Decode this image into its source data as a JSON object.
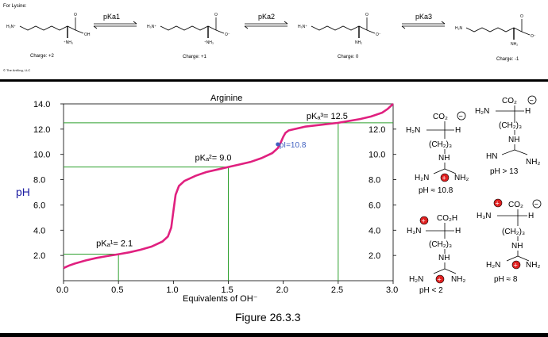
{
  "top_panel": {
    "heading": "For Lysine:",
    "copyright": "© The AnKing, LLC",
    "arrow_labels": [
      "pKa1",
      "pKa2",
      "pKa3"
    ],
    "species": [
      {
        "charge": "Charge: +2",
        "n_term": "H₃N⁺",
        "alpha_group": "⁺NH₃",
        "acid": "OH"
      },
      {
        "charge": "Charge: +1",
        "n_term": "H₃N⁺",
        "alpha_group": "⁺NH₃",
        "acid": "O⁻"
      },
      {
        "charge": "Charge: 0",
        "n_term": "H₃N⁺",
        "alpha_group": "NH₂",
        "acid": "O⁻"
      },
      {
        "charge": "Charge: -1",
        "n_term": "H₂N",
        "alpha_group": "NH₂",
        "acid": "O⁻"
      }
    ],
    "carbonyl_o": "O"
  },
  "figure": {
    "caption": "Figure 26.3.3",
    "structures": [
      {
        "pH": "pH > 13",
        "carboxyl": "CO₂",
        "carboxyl_charge": "−",
        "amine": "H₂N",
        "h": "H",
        "chain": "(CH₂)₃",
        "nh": "NH",
        "left_n": "HN",
        "right_n": "NH₂"
      },
      {
        "pH": "pH ≈ 10.8",
        "carboxyl": "CO₂",
        "carboxyl_charge": "−",
        "amine": "H₂N",
        "h": "H",
        "chain": "(CH₂)₃",
        "nh": "NH",
        "left_n": "H₂N",
        "right_n": "NH₂",
        "guan_charge": "+"
      },
      {
        "pH": "pH ≈ 8",
        "carboxyl": "CO₂",
        "carboxyl_charge": "−",
        "amine": "H₃N",
        "amine_charge": "+",
        "h": "H",
        "chain": "(CH₂)₃",
        "nh": "NH",
        "left_n": "H₂N",
        "right_n": "NH₂",
        "guan_charge": "+"
      },
      {
        "pH": "pH < 2",
        "carboxyl": "CO₂H",
        "amine": "H₃N",
        "amine_charge": "+",
        "h": "H",
        "chain": "(CH₂)₃",
        "nh": "NH",
        "left_n": "H₂N",
        "right_n": "NH₂",
        "guan_charge": "+"
      }
    ]
  },
  "chart_data": {
    "type": "line",
    "title": "Arginine",
    "xlabel": "Equivalents of OH⁻",
    "ylabel": "pH",
    "xlim": [
      0,
      3.0
    ],
    "ylim": [
      0,
      14.0
    ],
    "x_ticks": [
      "0.0",
      "0.5",
      "1.0",
      "1.5",
      "2.0",
      "2.5",
      "3.0"
    ],
    "y_ticks": [
      "2.0",
      "4.0",
      "6.0",
      "8.0",
      "10.0",
      "12.0",
      "14.0"
    ],
    "grid": false,
    "colors": {
      "curve": "#e0207f",
      "guides": "#2ea02e",
      "axis": "#000000",
      "pI": "#4060c0"
    },
    "curve": {
      "x": [
        0.0,
        0.05,
        0.1,
        0.2,
        0.3,
        0.4,
        0.5,
        0.6,
        0.7,
        0.8,
        0.9,
        0.95,
        0.98,
        1.0,
        1.02,
        1.05,
        1.1,
        1.2,
        1.3,
        1.4,
        1.5,
        1.6,
        1.7,
        1.8,
        1.9,
        1.95,
        1.98,
        2.0,
        2.02,
        2.05,
        2.1,
        2.2,
        2.3,
        2.4,
        2.5,
        2.6,
        2.7,
        2.8,
        2.9,
        2.95,
        3.0
      ],
      "y": [
        1.0,
        1.2,
        1.35,
        1.6,
        1.8,
        1.95,
        2.1,
        2.25,
        2.45,
        2.7,
        3.1,
        3.5,
        4.2,
        5.5,
        6.8,
        7.5,
        7.9,
        8.3,
        8.6,
        8.8,
        9.0,
        9.2,
        9.4,
        9.7,
        10.1,
        10.5,
        11.0,
        11.4,
        11.7,
        11.9,
        12.0,
        12.2,
        12.3,
        12.4,
        12.5,
        12.65,
        12.8,
        13.0,
        13.3,
        13.6,
        14.0
      ]
    },
    "guides": [
      {
        "label": "pKₐ¹= 2.1",
        "x": 0.5,
        "y": 2.1
      },
      {
        "label": "pKₐ²= 9.0",
        "x": 1.5,
        "y": 9.0
      },
      {
        "label": "pKₐ³= 12.5",
        "x": 2.5,
        "y": 12.5
      }
    ],
    "pI": {
      "label": "pI=10.8",
      "x": 1.95,
      "y": 10.8
    },
    "right_axis_ticks": [
      "2.0",
      "4.0",
      "6.0",
      "8.0",
      "10.0",
      "12.0"
    ]
  }
}
